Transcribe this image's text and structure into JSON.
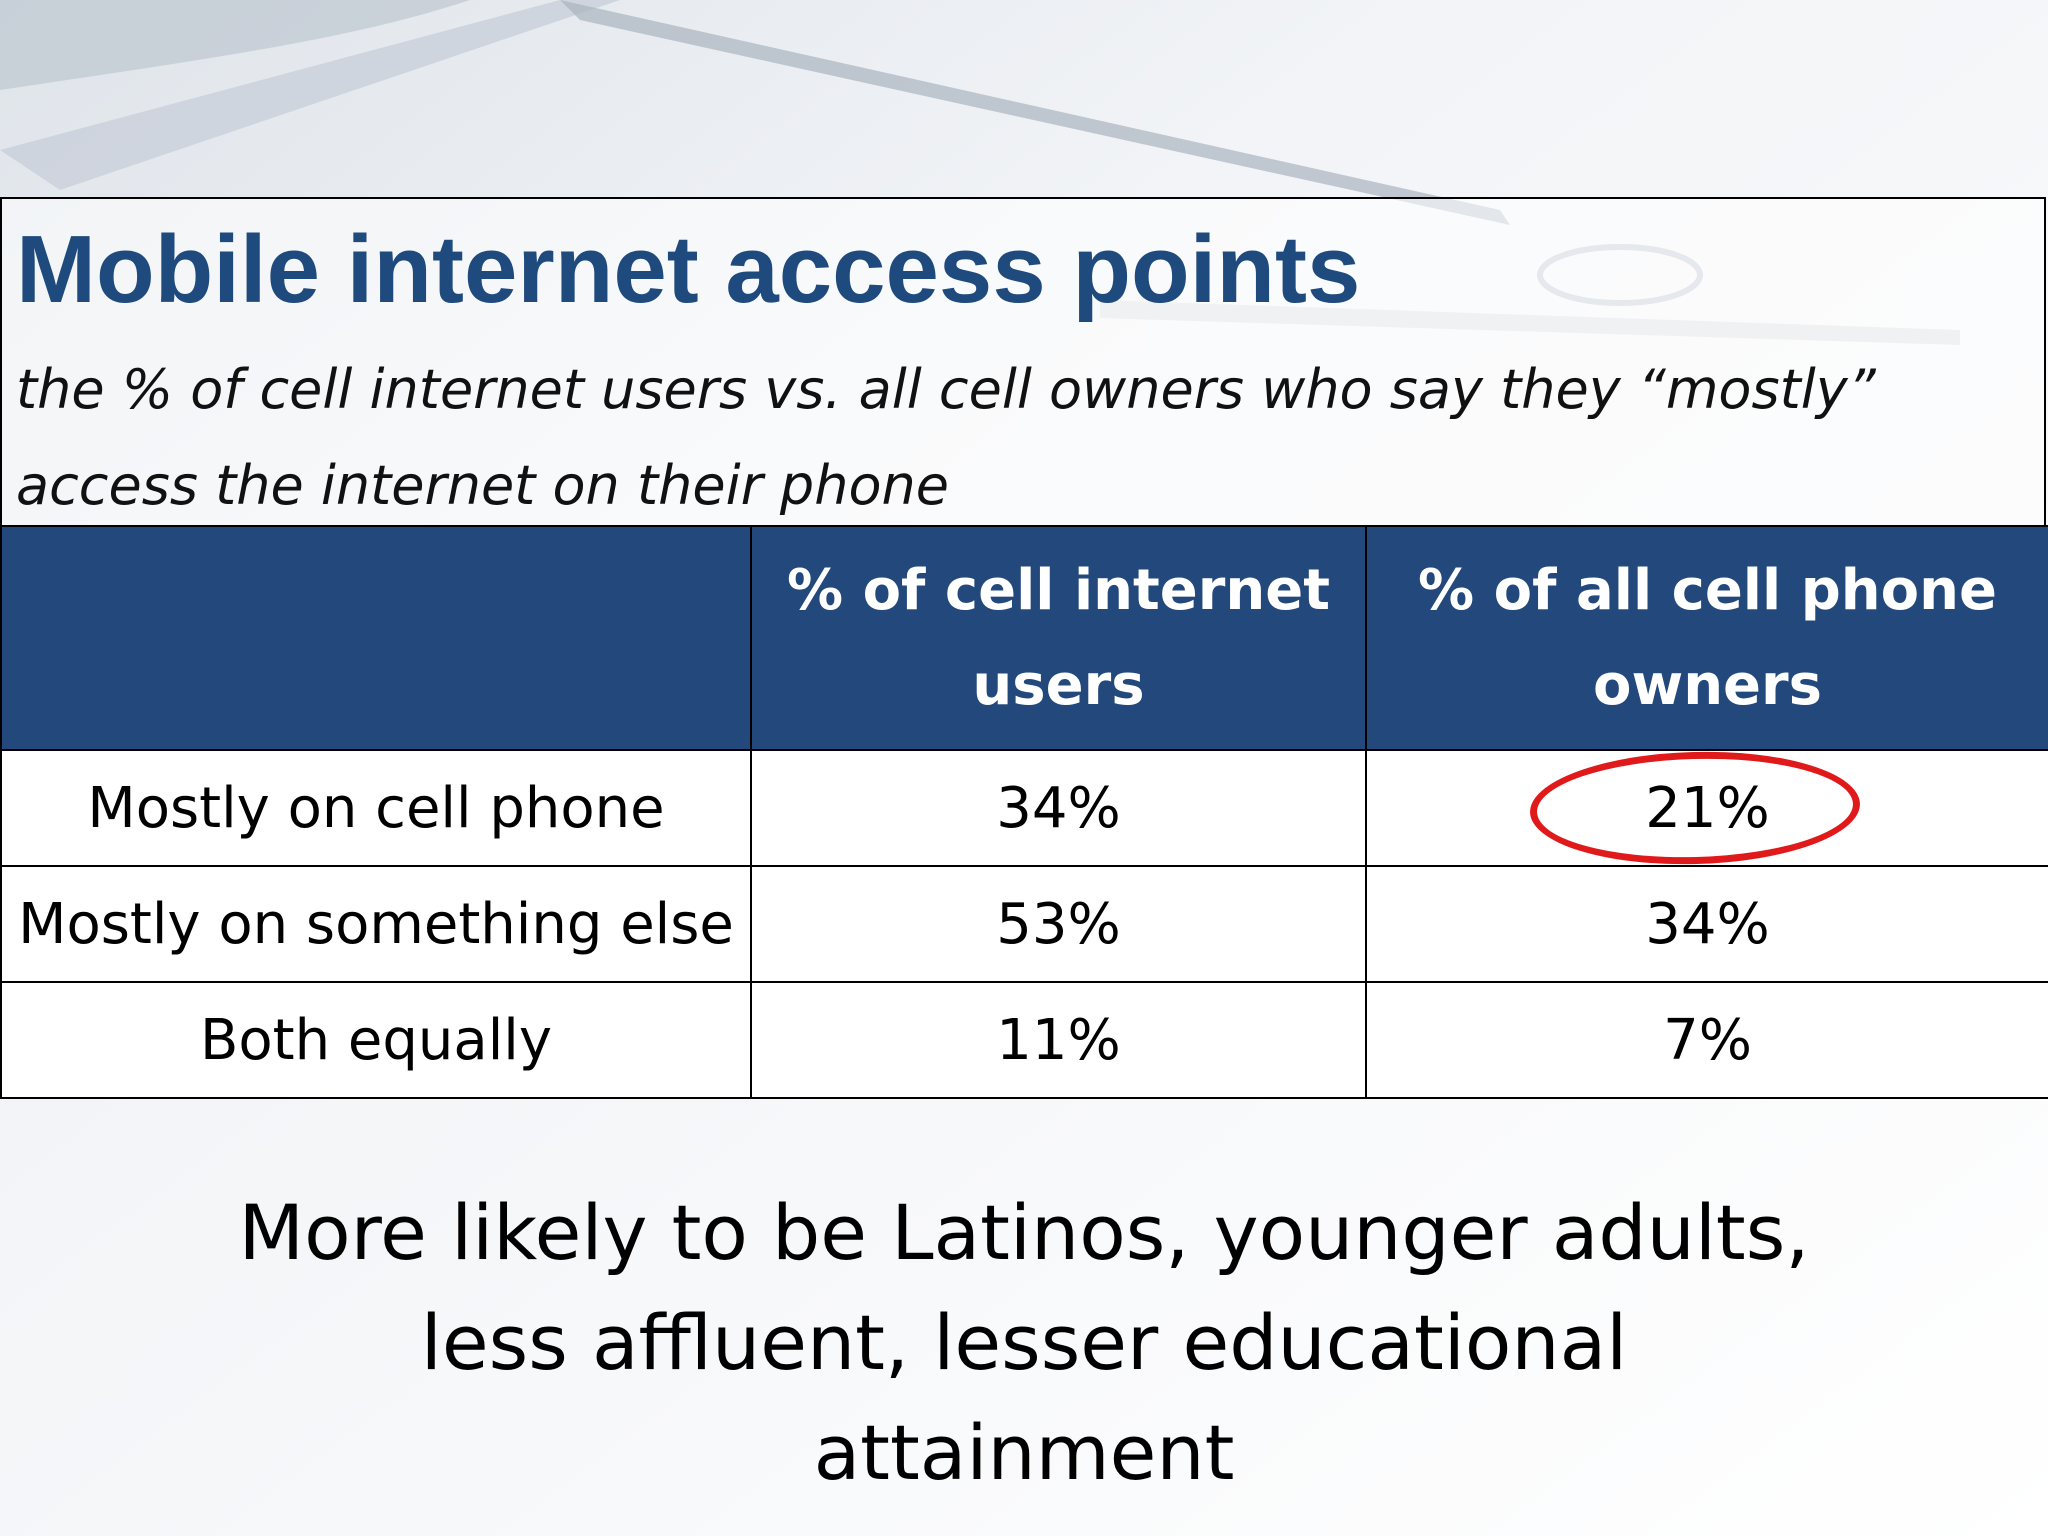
{
  "slide": {
    "title": "Mobile internet access points",
    "subtitle": "the % of cell internet users vs. all cell owners who say they “mostly” access the internet on their phone",
    "note": "More likely to be Latinos,  younger adults, less affluent, lesser educational attainment"
  },
  "table": {
    "headers": [
      "",
      "% of cell internet users",
      "% of all cell phone owners"
    ],
    "rows": [
      {
        "label": "Mostly on cell phone",
        "cell_internet_users": "34%",
        "all_cell_owners": "21%"
      },
      {
        "label": "Mostly on something else",
        "cell_internet_users": "53%",
        "all_cell_owners": "34%"
      },
      {
        "label": "Both equally",
        "cell_internet_users": "11%",
        "all_cell_owners": "7%"
      }
    ]
  },
  "colors": {
    "title": "#1f4a7d",
    "header_fill": "#22487c",
    "highlight": "#e01a1a"
  },
  "icons": [
    "highlight-circle"
  ]
}
